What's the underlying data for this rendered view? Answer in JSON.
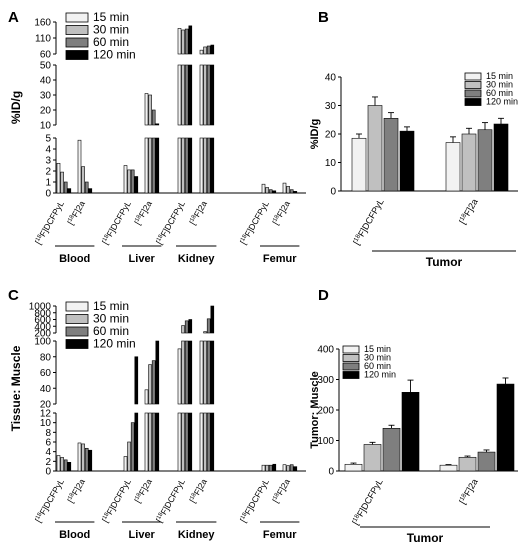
{
  "panels": {
    "A": {
      "letter": "A"
    },
    "B": {
      "letter": "B"
    },
    "C": {
      "letter": "C"
    },
    "D": {
      "letter": "D"
    }
  },
  "legend_labels": [
    "15 min",
    "30 min",
    "60 min",
    "120 min"
  ],
  "series_colors": [
    "#f2f2f2",
    "#c0c0c0",
    "#7f7f7f",
    "#000000"
  ],
  "chart_data": [
    {
      "panel": "A",
      "type": "bar",
      "ylabel": "%ID/g",
      "legend": [
        "15 min",
        "30 min",
        "60 min",
        "120 min"
      ],
      "groups": [
        "Blood",
        "Liver",
        "Kidney",
        "Femur"
      ],
      "categories": [
        "[18F]DCFPyL",
        "[18F]2a",
        "[18F]DCFPyL",
        "[18F]2a",
        "[18F]DCFPyL",
        "[18F]2a",
        "[18F]DCFPyL",
        "[18F]2a"
      ],
      "broken_axis_segments": [
        {
          "range": [
            0,
            5
          ],
          "ticks": [
            0,
            1,
            2,
            3,
            4,
            5
          ]
        },
        {
          "range": [
            10,
            50
          ],
          "ticks": [
            10,
            20,
            30,
            40,
            50
          ]
        },
        {
          "range": [
            60,
            160
          ],
          "ticks": [
            60,
            110,
            160
          ]
        }
      ],
      "series": [
        {
          "name": "15 min",
          "values": [
            2.7,
            4.8,
            2.5,
            31.0,
            140.0,
            72.0,
            0.8,
            0.9
          ]
        },
        {
          "name": "30 min",
          "values": [
            1.9,
            2.4,
            2.1,
            30.0,
            135.0,
            82.0,
            0.5,
            0.6
          ]
        },
        {
          "name": "60 min",
          "values": [
            1.0,
            1.0,
            2.1,
            20.0,
            138.0,
            85.0,
            0.3,
            0.3
          ]
        },
        {
          "name": "120 min",
          "values": [
            0.4,
            0.4,
            1.5,
            10.8,
            148.0,
            88.0,
            0.2,
            0.15
          ]
        }
      ]
    },
    {
      "panel": "B",
      "type": "bar",
      "ylabel": "%ID/g",
      "xlabel": "Tumor",
      "categories": [
        "[18F]DCFPyL",
        "[18F]2a"
      ],
      "ylim": [
        0,
        40
      ],
      "yticks": [
        0,
        10,
        20,
        30,
        40
      ],
      "legend": [
        "15 min",
        "30 min",
        "60 min",
        "120 min"
      ],
      "series": [
        {
          "name": "15 min",
          "values": [
            18.5,
            17.0
          ],
          "errors": [
            1.5,
            2.0
          ]
        },
        {
          "name": "30 min",
          "values": [
            30.0,
            20.0
          ],
          "errors": [
            3.0,
            2.0
          ]
        },
        {
          "name": "60 min",
          "values": [
            25.5,
            21.5
          ],
          "errors": [
            2.0,
            2.5
          ]
        },
        {
          "name": "120 min",
          "values": [
            21.0,
            23.5
          ],
          "errors": [
            1.5,
            2.0
          ]
        }
      ]
    },
    {
      "panel": "C",
      "type": "bar",
      "ylabel": "Tissue: Muscle",
      "legend": [
        "15 min",
        "30 min",
        "60 min",
        "120 min"
      ],
      "groups": [
        "Blood",
        "Liver",
        "Kidney",
        "Femur"
      ],
      "categories": [
        "[18F]DCFPyL",
        "[18F]2a",
        "[18F]DCFPyL",
        "[18F]2a",
        "[18F]DCFPyL",
        "[18F]2a",
        "[18F]DCFPyL",
        "[18F]2a"
      ],
      "broken_axis_segments": [
        {
          "range": [
            0,
            12
          ],
          "ticks": [
            0,
            2,
            4,
            6,
            8,
            10,
            12
          ]
        },
        {
          "range": [
            20,
            100
          ],
          "ticks": [
            20,
            40,
            60,
            80,
            100
          ]
        },
        {
          "range": [
            200,
            1000
          ],
          "ticks": [
            200,
            400,
            600,
            800,
            1000
          ]
        }
      ],
      "series": [
        {
          "name": "15 min",
          "values": [
            3.2,
            5.8,
            3.0,
            38.0,
            90.0,
            130.0,
            1.2,
            1.3
          ]
        },
        {
          "name": "30 min",
          "values": [
            2.8,
            5.6,
            6.0,
            70.0,
            420.0,
            240.0,
            1.2,
            1.1
          ]
        },
        {
          "name": "60 min",
          "values": [
            2.3,
            4.7,
            10.0,
            75.0,
            560.0,
            620.0,
            1.2,
            1.3
          ]
        },
        {
          "name": "120 min",
          "values": [
            1.8,
            4.3,
            80.0,
            180.0,
            600.0,
            1000.0,
            1.4,
            0.9
          ]
        }
      ]
    },
    {
      "panel": "D",
      "type": "bar",
      "ylabel": "Tumor: Muscle",
      "xlabel": "Tumor",
      "categories": [
        "[18F]DCFPyL",
        "[18F]2a"
      ],
      "ylim": [
        0,
        400
      ],
      "yticks": [
        0,
        100,
        200,
        300,
        400
      ],
      "legend": [
        "15 min",
        "30 min",
        "60 min",
        "120 min"
      ],
      "series": [
        {
          "name": "15 min",
          "values": [
            22,
            19
          ],
          "errors": [
            4,
            2
          ]
        },
        {
          "name": "30 min",
          "values": [
            87,
            45
          ],
          "errors": [
            7,
            4
          ]
        },
        {
          "name": "60 min",
          "values": [
            140,
            62
          ],
          "errors": [
            10,
            7
          ]
        },
        {
          "name": "120 min",
          "values": [
            258,
            285
          ],
          "errors": [
            40,
            20
          ]
        }
      ]
    }
  ]
}
